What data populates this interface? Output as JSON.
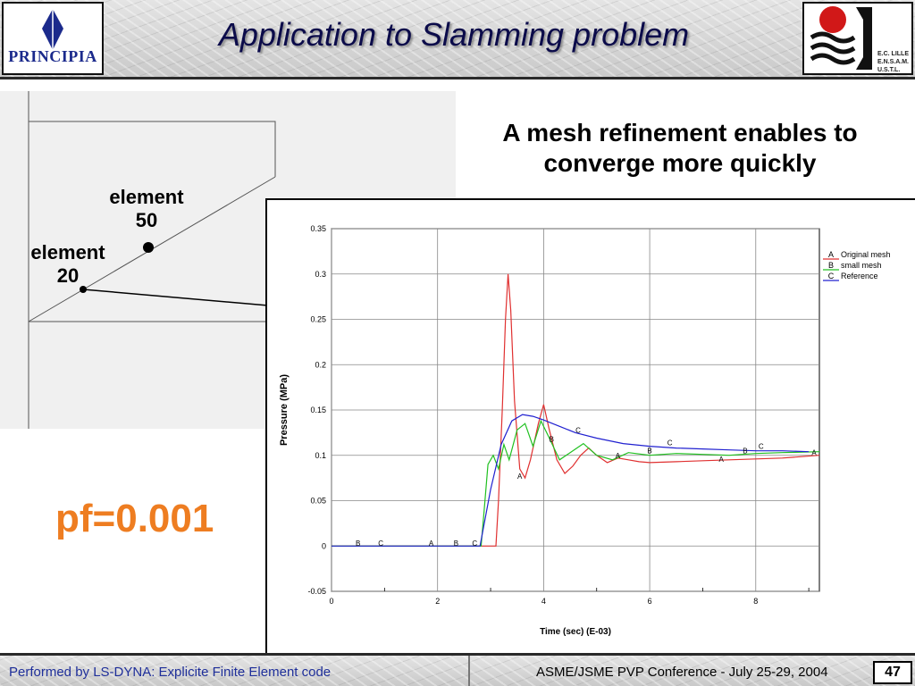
{
  "header": {
    "title": "Application to Slamming problem",
    "logo_left_text": "PRINCIPIA",
    "logo_right_lines": [
      "E.C. LILLE",
      "E.N.S.A.M.",
      "U.S.T.L."
    ]
  },
  "diagram": {
    "label_element50_line1": "element",
    "label_element50_line2": "50",
    "label_element20_line1": "element",
    "label_element20_line2": "20"
  },
  "main": {
    "mesh_line1": "A mesh refinement enables to",
    "mesh_line2": "converge more quickly",
    "pf_label": "pf=0.001"
  },
  "footer": {
    "left_text": "Performed by LS-DYNA: Explicite Finite Element code",
    "right_text": "ASME/JSME PVP Conference - July 25-29, 2004",
    "page_number": "47"
  },
  "chart_data": {
    "type": "line",
    "xlabel": "Time (sec) (E-03)",
    "ylabel": "Pressure (MPa)",
    "xlim": [
      0,
      9.2
    ],
    "ylim": [
      -0.05,
      0.35
    ],
    "xticks": [
      0,
      2,
      4,
      6,
      8
    ],
    "yticks": [
      -0.05,
      0,
      0.05,
      0.1,
      0.15,
      0.2,
      0.25,
      0.3,
      0.35
    ],
    "grid": true,
    "legend_position": "top-right",
    "series": [
      {
        "name": "Original mesh",
        "marker": "A",
        "color": "#e03030",
        "x": [
          0,
          3.1,
          3.15,
          3.22,
          3.28,
          3.33,
          3.38,
          3.45,
          3.55,
          3.65,
          3.75,
          3.9,
          4.0,
          4.1,
          4.25,
          4.4,
          4.55,
          4.7,
          4.85,
          5.0,
          5.2,
          5.4,
          5.6,
          5.8,
          6.0,
          6.5,
          7.0,
          7.5,
          8.0,
          8.5,
          9.2
        ],
        "y": [
          0,
          0,
          0.05,
          0.15,
          0.25,
          0.3,
          0.26,
          0.16,
          0.085,
          0.075,
          0.095,
          0.135,
          0.156,
          0.13,
          0.095,
          0.08,
          0.088,
          0.1,
          0.108,
          0.1,
          0.092,
          0.097,
          0.095,
          0.093,
          0.092,
          0.093,
          0.094,
          0.095,
          0.096,
          0.097,
          0.1
        ]
      },
      {
        "name": "small mesh",
        "marker": "B",
        "color": "#20c020",
        "x": [
          0,
          2.82,
          2.88,
          2.95,
          3.05,
          3.15,
          3.25,
          3.35,
          3.5,
          3.65,
          3.8,
          3.95,
          4.1,
          4.3,
          4.5,
          4.75,
          5.0,
          5.3,
          5.6,
          6.0,
          6.5,
          7.0,
          7.5,
          8.0,
          8.5,
          9.2
        ],
        "y": [
          0,
          0,
          0.04,
          0.09,
          0.1,
          0.085,
          0.112,
          0.095,
          0.128,
          0.135,
          0.11,
          0.138,
          0.12,
          0.095,
          0.103,
          0.113,
          0.1,
          0.095,
          0.103,
          0.1,
          0.102,
          0.101,
          0.1,
          0.102,
          0.103,
          0.104
        ]
      },
      {
        "name": "Reference",
        "marker": "C",
        "color": "#2020d0",
        "x": [
          0,
          2.8,
          3.0,
          3.2,
          3.4,
          3.6,
          3.8,
          4.0,
          4.3,
          4.6,
          5.0,
          5.5,
          6.0,
          6.5,
          7.0,
          7.5,
          8.0,
          8.5,
          9.0
        ],
        "y": [
          0,
          0,
          0.062,
          0.112,
          0.138,
          0.145,
          0.143,
          0.139,
          0.132,
          0.125,
          0.119,
          0.113,
          0.11,
          0.108,
          0.107,
          0.106,
          0.105,
          0.105,
          0.104
        ]
      }
    ],
    "series_markers": [
      {
        "letter": "B",
        "x": 0.5,
        "y": 0.003
      },
      {
        "letter": "C",
        "x": 0.93,
        "y": 0.003
      },
      {
        "letter": "A",
        "x": 1.88,
        "y": 0.003
      },
      {
        "letter": "B",
        "x": 2.35,
        "y": 0.003
      },
      {
        "letter": "C",
        "x": 2.7,
        "y": 0.003
      },
      {
        "letter": "A",
        "x": 3.55,
        "y": 0.077
      },
      {
        "letter": "B",
        "x": 4.15,
        "y": 0.118
      },
      {
        "letter": "C",
        "x": 4.65,
        "y": 0.128
      },
      {
        "letter": "A",
        "x": 5.4,
        "y": 0.1
      },
      {
        "letter": "B",
        "x": 6.0,
        "y": 0.105
      },
      {
        "letter": "C",
        "x": 6.38,
        "y": 0.114
      },
      {
        "letter": "A",
        "x": 7.35,
        "y": 0.096
      },
      {
        "letter": "B",
        "x": 7.8,
        "y": 0.105
      },
      {
        "letter": "C",
        "x": 8.1,
        "y": 0.11
      },
      {
        "letter": "A",
        "x": 9.1,
        "y": 0.103
      }
    ]
  }
}
